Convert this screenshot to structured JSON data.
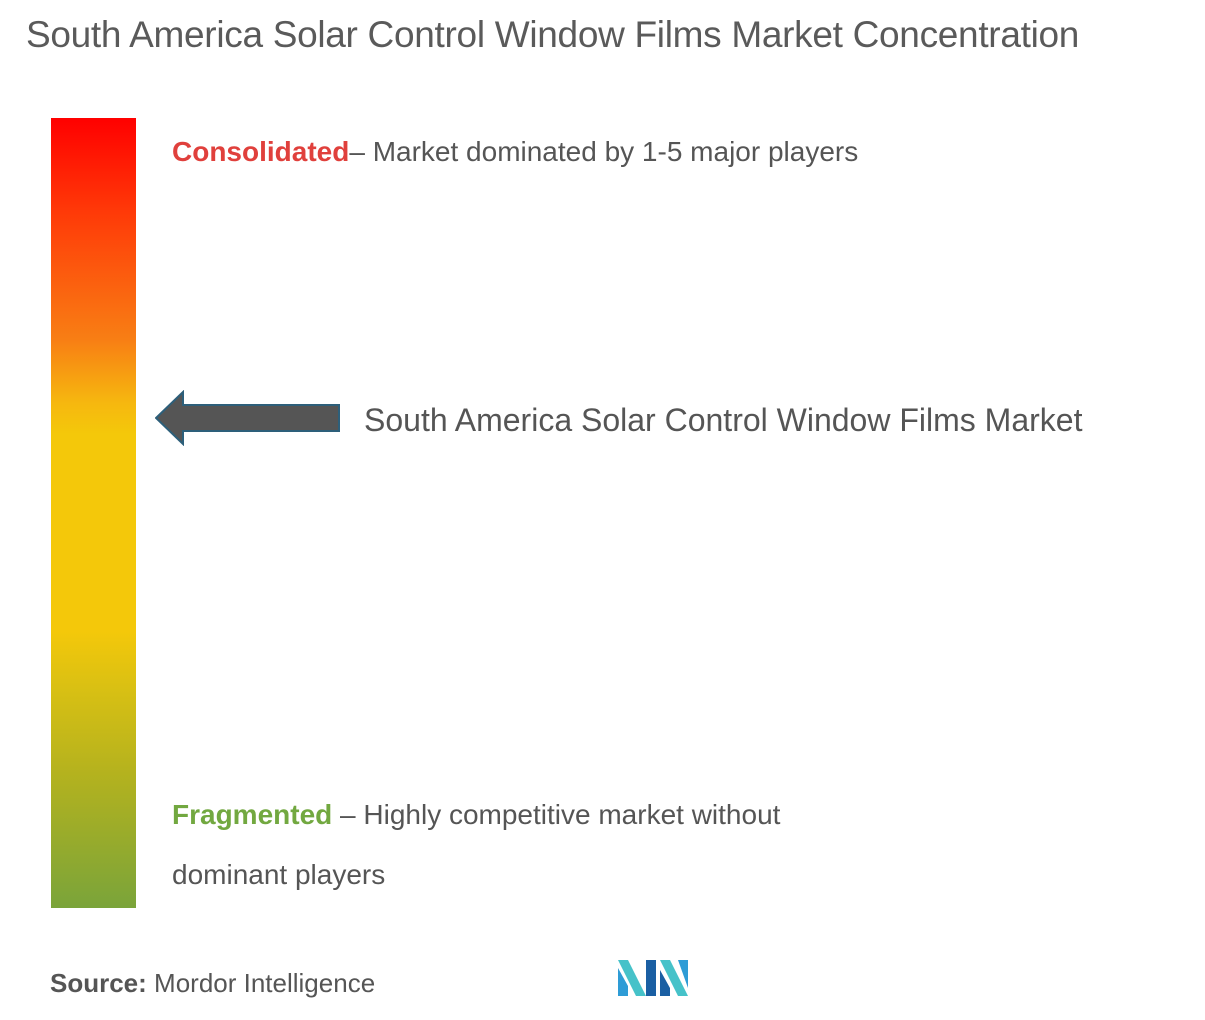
{
  "title": "South America Solar Control Window Films Market Concentration",
  "chart_data": {
    "type": "concentration-scale",
    "scale_top": {
      "keyword": "Consolidated",
      "description": "– Market dominated by 1-5 major players",
      "color": "#e0403c"
    },
    "scale_bottom": {
      "keyword": "Fragmented",
      "description": " – Highly competitive market without dominant players",
      "color": "#72a840"
    },
    "marker": {
      "label": "South America Solar Control Window Films Market",
      "position": 0.38,
      "color": "#555555"
    },
    "gradient_colors": [
      "#ff0000",
      "#f87e14",
      "#f4c80a",
      "#7aa43a"
    ]
  },
  "source": {
    "label": "Source:",
    "text": " Mordor Intelligence"
  },
  "logo": {
    "icon": "mordor-intelligence-logo",
    "colors": [
      "#2e9cd6",
      "#1a5fa3",
      "#46c2c9"
    ]
  }
}
